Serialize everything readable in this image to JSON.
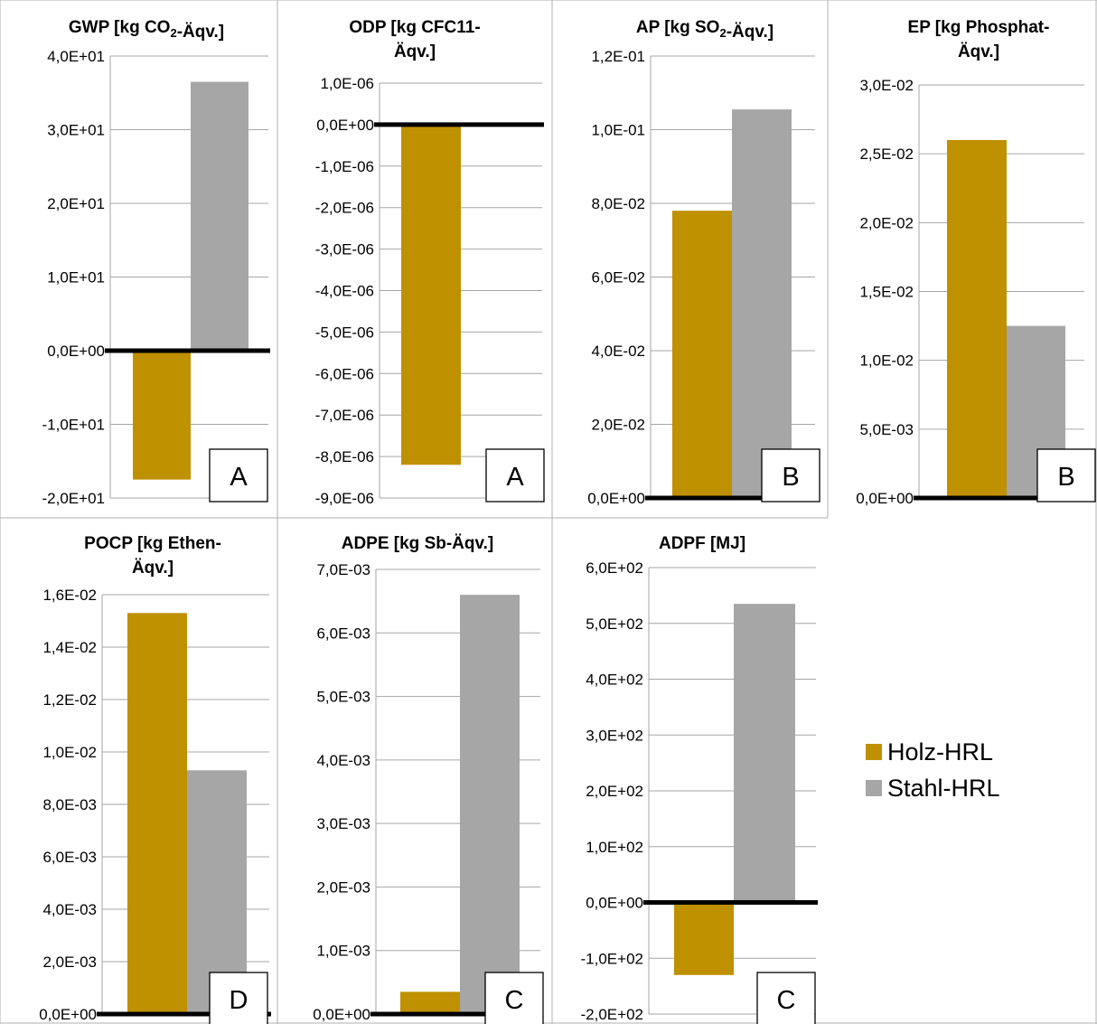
{
  "series_colors": {
    "Holz-HRL": "#bf9000",
    "Stahl-HRL": "#a6a6a6"
  },
  "legend": [
    {
      "label": "Holz-HRL",
      "color": "#bf9000"
    },
    {
      "label": "Stahl-HRL",
      "color": "#a6a6a6"
    }
  ],
  "chart_data": [
    {
      "type": "bar",
      "title_lines": [
        [
          "GWP [kg CO",
          {
            "sub": "2"
          },
          "-Äqv.]"
        ]
      ],
      "categories": [
        "Holz-HRL",
        "Stahl-HRL"
      ],
      "values": [
        -17.5,
        36.5
      ],
      "ylim": [
        -20,
        40
      ],
      "ticks": [
        {
          "v": 40,
          "label": "4,0E+01"
        },
        {
          "v": 30,
          "label": "3,0E+01"
        },
        {
          "v": 20,
          "label": "2,0E+01"
        },
        {
          "v": 10,
          "label": "1,0E+01"
        },
        {
          "v": 0,
          "label": "0,0E+00"
        },
        {
          "v": -10,
          "label": "-1,0E+01"
        },
        {
          "v": -20,
          "label": "-2,0E+01"
        }
      ],
      "badge": "A"
    },
    {
      "type": "bar",
      "title_lines": [
        [
          "ODP [kg CFC11-"
        ],
        [
          "Äqv.]"
        ]
      ],
      "categories": [
        "Holz-HRL",
        "Stahl-HRL"
      ],
      "values": [
        -8.2e-06,
        0
      ],
      "ylim": [
        -9e-06,
        1e-06
      ],
      "ticks": [
        {
          "v": 1e-06,
          "label": "1,0E-06"
        },
        {
          "v": 0,
          "label": "0,0E+00"
        },
        {
          "v": -1e-06,
          "label": "-1,0E-06"
        },
        {
          "v": -2e-06,
          "label": "-2,0E-06"
        },
        {
          "v": -3e-06,
          "label": "-3,0E-06"
        },
        {
          "v": -4e-06,
          "label": "-4,0E-06"
        },
        {
          "v": -5e-06,
          "label": "-5,0E-06"
        },
        {
          "v": -6e-06,
          "label": "-6,0E-06"
        },
        {
          "v": -7e-06,
          "label": "-7,0E-06"
        },
        {
          "v": -8e-06,
          "label": "-8,0E-06"
        },
        {
          "v": -9e-06,
          "label": "-9,0E-06"
        }
      ],
      "badge": "A"
    },
    {
      "type": "bar",
      "title_lines": [
        [
          "AP [kg SO",
          {
            "sub": "2"
          },
          "-Äqv.]"
        ]
      ],
      "categories": [
        "Holz-HRL",
        "Stahl-HRL"
      ],
      "values": [
        0.078,
        0.1055
      ],
      "ylim": [
        0,
        0.12
      ],
      "ticks": [
        {
          "v": 0.12,
          "label": "1,2E-01"
        },
        {
          "v": 0.1,
          "label": "1,0E-01"
        },
        {
          "v": 0.08,
          "label": "8,0E-02"
        },
        {
          "v": 0.06,
          "label": "6,0E-02"
        },
        {
          "v": 0.04,
          "label": "4,0E-02"
        },
        {
          "v": 0.02,
          "label": "2,0E-02"
        },
        {
          "v": 0,
          "label": "0,0E+00"
        }
      ],
      "badge": "B"
    },
    {
      "type": "bar",
      "title_lines": [
        [
          "EP [kg Phosphat-"
        ],
        [
          "Äqv.]"
        ]
      ],
      "categories": [
        "Holz-HRL",
        "Stahl-HRL"
      ],
      "values": [
        0.026,
        0.0125
      ],
      "ylim": [
        0,
        0.03
      ],
      "ticks": [
        {
          "v": 0.03,
          "label": "3,0E-02"
        },
        {
          "v": 0.025,
          "label": "2,5E-02"
        },
        {
          "v": 0.02,
          "label": "2,0E-02"
        },
        {
          "v": 0.015,
          "label": "1,5E-02"
        },
        {
          "v": 0.01,
          "label": "1,0E-02"
        },
        {
          "v": 0.005,
          "label": "5,0E-03"
        },
        {
          "v": 0,
          "label": "0,0E+00"
        }
      ],
      "badge": "B"
    },
    {
      "type": "bar",
      "title_lines": [
        [
          "POCP [kg Ethen-"
        ],
        [
          "Äqv.]"
        ]
      ],
      "categories": [
        "Holz-HRL",
        "Stahl-HRL"
      ],
      "values": [
        0.0153,
        0.0093
      ],
      "ylim": [
        0,
        0.016
      ],
      "ticks": [
        {
          "v": 0.016,
          "label": "1,6E-02"
        },
        {
          "v": 0.014,
          "label": "1,4E-02"
        },
        {
          "v": 0.012,
          "label": "1,2E-02"
        },
        {
          "v": 0.01,
          "label": "1,0E-02"
        },
        {
          "v": 0.008,
          "label": "8,0E-03"
        },
        {
          "v": 0.006,
          "label": "6,0E-03"
        },
        {
          "v": 0.004,
          "label": "4,0E-03"
        },
        {
          "v": 0.002,
          "label": "2,0E-03"
        },
        {
          "v": 0,
          "label": "0,0E+00"
        }
      ],
      "badge": "D"
    },
    {
      "type": "bar",
      "title_lines": [
        [
          "ADPE [kg Sb-Äqv.]"
        ]
      ],
      "categories": [
        "Holz-HRL",
        "Stahl-HRL"
      ],
      "values": [
        0.00035,
        0.0066
      ],
      "ylim": [
        0,
        0.007
      ],
      "ticks": [
        {
          "v": 0.007,
          "label": "7,0E-03"
        },
        {
          "v": 0.006,
          "label": "6,0E-03"
        },
        {
          "v": 0.005,
          "label": "5,0E-03"
        },
        {
          "v": 0.004,
          "label": "4,0E-03"
        },
        {
          "v": 0.003,
          "label": "3,0E-03"
        },
        {
          "v": 0.002,
          "label": "2,0E-03"
        },
        {
          "v": 0.001,
          "label": "1,0E-03"
        },
        {
          "v": 0,
          "label": "0,0E+00"
        }
      ],
      "badge": "C"
    },
    {
      "type": "bar",
      "title_lines": [
        [
          "ADPF [MJ]"
        ]
      ],
      "categories": [
        "Holz-HRL",
        "Stahl-HRL"
      ],
      "values": [
        -130,
        535
      ],
      "ylim": [
        -200,
        600
      ],
      "ticks": [
        {
          "v": 600,
          "label": "6,0E+02"
        },
        {
          "v": 500,
          "label": "5,0E+02"
        },
        {
          "v": 400,
          "label": "4,0E+02"
        },
        {
          "v": 300,
          "label": "3,0E+02"
        },
        {
          "v": 200,
          "label": "2,0E+02"
        },
        {
          "v": 100,
          "label": "1,0E+02"
        },
        {
          "v": 0,
          "label": "0,0E+00"
        },
        {
          "v": -100,
          "label": "-1,0E+02"
        },
        {
          "v": -200,
          "label": "-2,0E+02"
        }
      ],
      "badge": "C"
    }
  ]
}
